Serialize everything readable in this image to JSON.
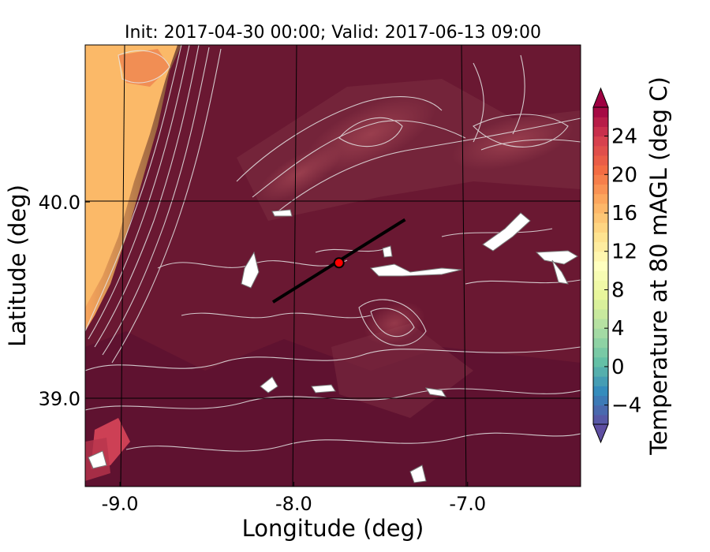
{
  "chart_data": {
    "type": "heatmap",
    "title": "Init: 2017-04-30 00:00; Valid: 2017-06-13 09:00",
    "xlabel": "Longitude (deg)",
    "ylabel": "Latitude (deg)",
    "xlim": [
      -9.2,
      -6.35
    ],
    "ylim": [
      38.55,
      40.8
    ],
    "xticks": [
      -9.0,
      -8.0,
      -7.0
    ],
    "xtick_labels": [
      "-9.0",
      "-8.0",
      "-7.0"
    ],
    "yticks": [
      39.0,
      40.0
    ],
    "ytick_labels": [
      "39.0",
      "40.0"
    ],
    "grid": true,
    "colorbar": {
      "label": "Temperature at 80 mAGL (deg C)",
      "range": [
        -6,
        27
      ],
      "ticks": [
        -4,
        0,
        4,
        8,
        12,
        16,
        20,
        24
      ],
      "tick_labels": [
        "−4",
        "0",
        "4",
        "8",
        "12",
        "16",
        "20",
        "24"
      ],
      "extend": "both",
      "colormap": "Spectral_r"
    },
    "transect": {
      "start": {
        "lon": -8.12,
        "lat": 39.49
      },
      "end": {
        "lon": -7.36,
        "lat": 39.91
      }
    },
    "marker": {
      "lon": -7.74,
      "lat": 39.69,
      "color": "#ff0000"
    }
  },
  "colors": {
    "background_field": "#6e1b35",
    "coastal_warm": "#fbb968",
    "gridline": "#000000",
    "contour": "#e6e6e6"
  }
}
